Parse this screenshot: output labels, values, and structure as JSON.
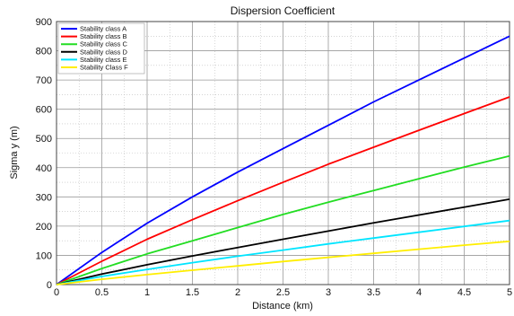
{
  "chart_data": {
    "type": "line",
    "title": "Dispersion Coefficient",
    "xlabel": "Distance (km)",
    "ylabel": "Sigma y (m)",
    "xlim": [
      0,
      5
    ],
    "ylim": [
      0,
      900
    ],
    "grid": true,
    "legend_position": "top-left",
    "x_ticks": [
      "0",
      "0.5",
      "1",
      "1.5",
      "2",
      "2.5",
      "3",
      "3.5",
      "4",
      "4.5",
      "5"
    ],
    "y_ticks": [
      "0",
      "100",
      "200",
      "300",
      "400",
      "500",
      "600",
      "700",
      "800",
      "900"
    ],
    "x": [
      0,
      0.5,
      1,
      1.5,
      2,
      2.5,
      3,
      3.5,
      4,
      4.5,
      5
    ],
    "series": [
      {
        "name": "Stability class A",
        "color": "#0000ff",
        "values": [
          0,
          110,
          210,
          300,
          385,
          465,
          545,
          625,
          700,
          775,
          850
        ]
      },
      {
        "name": "Stability class B",
        "color": "#ff0000",
        "values": [
          0,
          80,
          155,
          222,
          287,
          350,
          412,
          470,
          528,
          585,
          642
        ]
      },
      {
        "name": "Stability class C",
        "color": "#22dd22",
        "values": [
          0,
          55,
          105,
          150,
          195,
          240,
          282,
          322,
          362,
          402,
          440
        ]
      },
      {
        "name": "Stability class D",
        "color": "#000000",
        "values": [
          0,
          36,
          68,
          98,
          127,
          155,
          183,
          211,
          238,
          265,
          292
        ]
      },
      {
        "name": "Stability class E",
        "color": "#00e5ff",
        "values": [
          0,
          28,
          52,
          75,
          97,
          118,
          139,
          159,
          179,
          199,
          219
        ]
      },
      {
        "name": "Stability Class F",
        "color": "#ffee00",
        "values": [
          0,
          18,
          34,
          49,
          64,
          79,
          93,
          107,
          121,
          135,
          148
        ]
      }
    ]
  }
}
